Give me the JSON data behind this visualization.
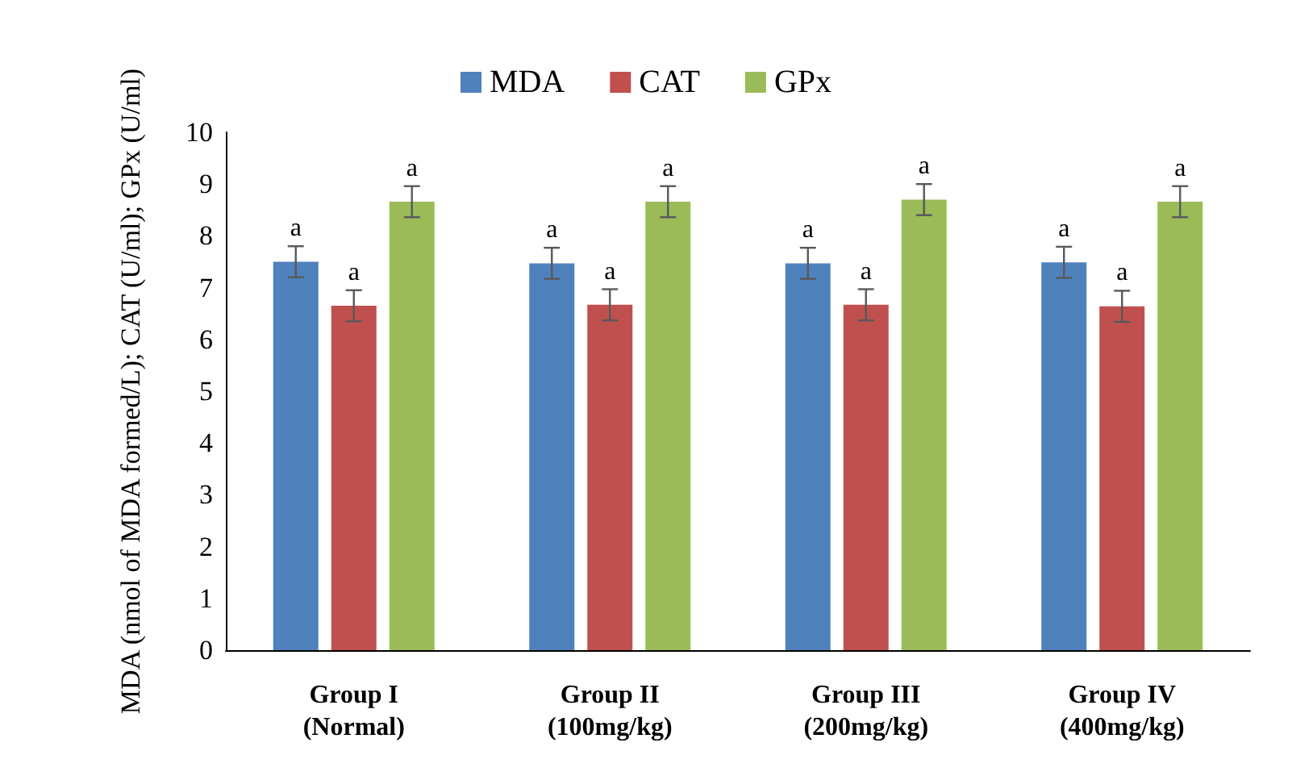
{
  "chart_data": {
    "type": "bar",
    "ylabel": "MDA (nmol of MDA formed/L); CAT (U/ml); GPx (U/ml)",
    "categories": [
      "Group I\n(Normal)",
      "Group II\n(100mg/kg)",
      "Group III\n(200mg/kg)",
      "Group IV\n(400mg/kg)"
    ],
    "series": [
      {
        "name": "MDA",
        "color": "#4f81bd",
        "values": [
          7.5,
          7.47,
          7.47,
          7.49
        ],
        "errors": [
          0.3,
          0.3,
          0.3,
          0.3
        ],
        "value_labels": [
          "a",
          "a",
          "a",
          "a"
        ]
      },
      {
        "name": "CAT",
        "color": "#c0504d",
        "values": [
          6.65,
          6.67,
          6.67,
          6.64
        ],
        "errors": [
          0.3,
          0.3,
          0.3,
          0.3
        ],
        "value_labels": [
          "a",
          "a",
          "a",
          "a"
        ]
      },
      {
        "name": "GPx",
        "color": "#9bbb59",
        "values": [
          8.66,
          8.66,
          8.7,
          8.66
        ],
        "errors": [
          0.3,
          0.3,
          0.3,
          0.3
        ],
        "value_labels": [
          "a",
          "a",
          "a",
          "a"
        ]
      }
    ],
    "ylim": [
      0,
      10
    ],
    "yticks": [
      0,
      1,
      2,
      3,
      4,
      5,
      6,
      7,
      8,
      9,
      10
    ],
    "grid": false,
    "legend": "top"
  }
}
